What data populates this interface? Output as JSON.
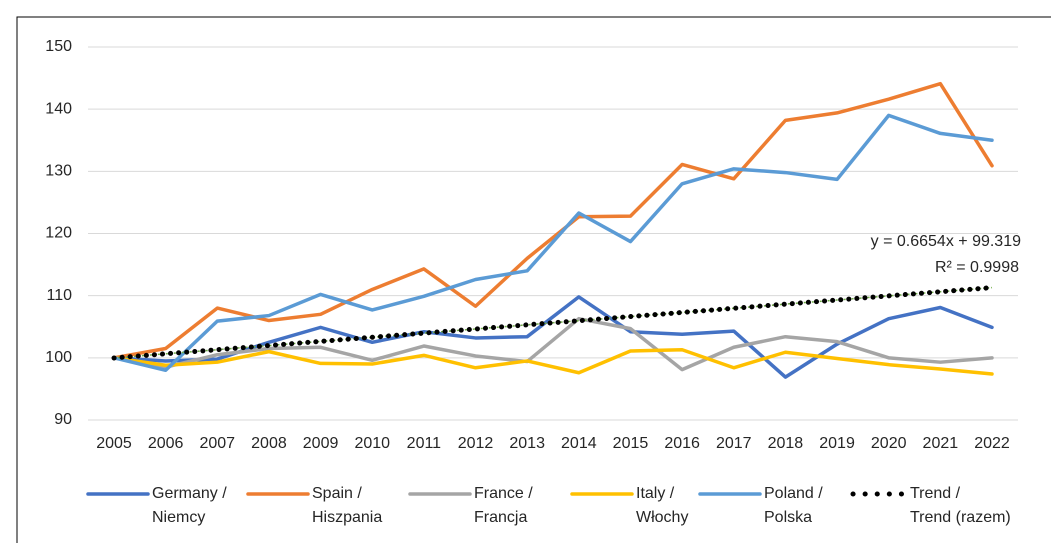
{
  "chart_data": {
    "type": "line",
    "x": [
      2005,
      2006,
      2007,
      2008,
      2009,
      2010,
      2011,
      2012,
      2013,
      2014,
      2015,
      2016,
      2017,
      2018,
      2019,
      2020,
      2021,
      2022
    ],
    "xticks": [
      2005,
      2006,
      2007,
      2008,
      2009,
      2010,
      2011,
      2012,
      2013,
      2014,
      2015,
      2016,
      2017,
      2018,
      2019,
      2020,
      2021,
      2022
    ],
    "ylim": [
      90,
      150
    ],
    "yticks": [
      90,
      100,
      110,
      120,
      130,
      140,
      150
    ],
    "grid": true,
    "series": [
      {
        "name": "Germany /\nNiemcy",
        "color": "#4472c4",
        "values": [
          100,
          99.5,
          99.8,
          102.5,
          104.9,
          102.5,
          104.2,
          103.2,
          103.4,
          109.8,
          104.2,
          103.8,
          104.3,
          96.9,
          102.2,
          106.3,
          108.1,
          104.9
        ]
      },
      {
        "name": "Spain /\nHiszpania",
        "color": "#ed7d31",
        "values": [
          100,
          101.5,
          108,
          106,
          107,
          111,
          114.3,
          108.3,
          116,
          122.7,
          122.8,
          131.1,
          128.8,
          138.2,
          139.4,
          141.6,
          144.1,
          130.9
        ]
      },
      {
        "name": "France /\nFrancja",
        "color": "#a5a5a5",
        "values": [
          100,
          98.5,
          100.5,
          101.5,
          101.7,
          99.6,
          101.9,
          100.3,
          99.4,
          106.3,
          104.7,
          98.1,
          101.7,
          103.4,
          102.6,
          100,
          99.3,
          100
        ]
      },
      {
        "name": "Italy /\nWłochy",
        "color": "#ffc000",
        "values": [
          100,
          98.8,
          99.3,
          101,
          99.1,
          99,
          100.4,
          98.4,
          99.5,
          97.6,
          101.1,
          101.3,
          98.4,
          100.9,
          99.9,
          98.9,
          98.2,
          97.4
        ]
      },
      {
        "name": "Poland /\nPolska",
        "color": "#5b9bd5",
        "values": [
          100,
          98,
          105.9,
          106.8,
          110.2,
          107.7,
          109.9,
          112.6,
          114,
          123.3,
          118.7,
          128,
          130.4,
          129.8,
          128.7,
          139,
          136.1,
          135
        ]
      },
      {
        "name": "Trend /\nTrend (razem)",
        "color": "#000000",
        "dotted": true,
        "values": [
          99.98,
          100.65,
          101.31,
          101.98,
          102.65,
          103.31,
          103.98,
          104.64,
          105.31,
          105.97,
          106.64,
          107.3,
          107.97,
          108.64,
          109.3,
          109.97,
          110.63,
          111.3
        ]
      }
    ],
    "annotations": [
      "y = 0.6654x + 99.319",
      "R² = 0.9998"
    ]
  }
}
